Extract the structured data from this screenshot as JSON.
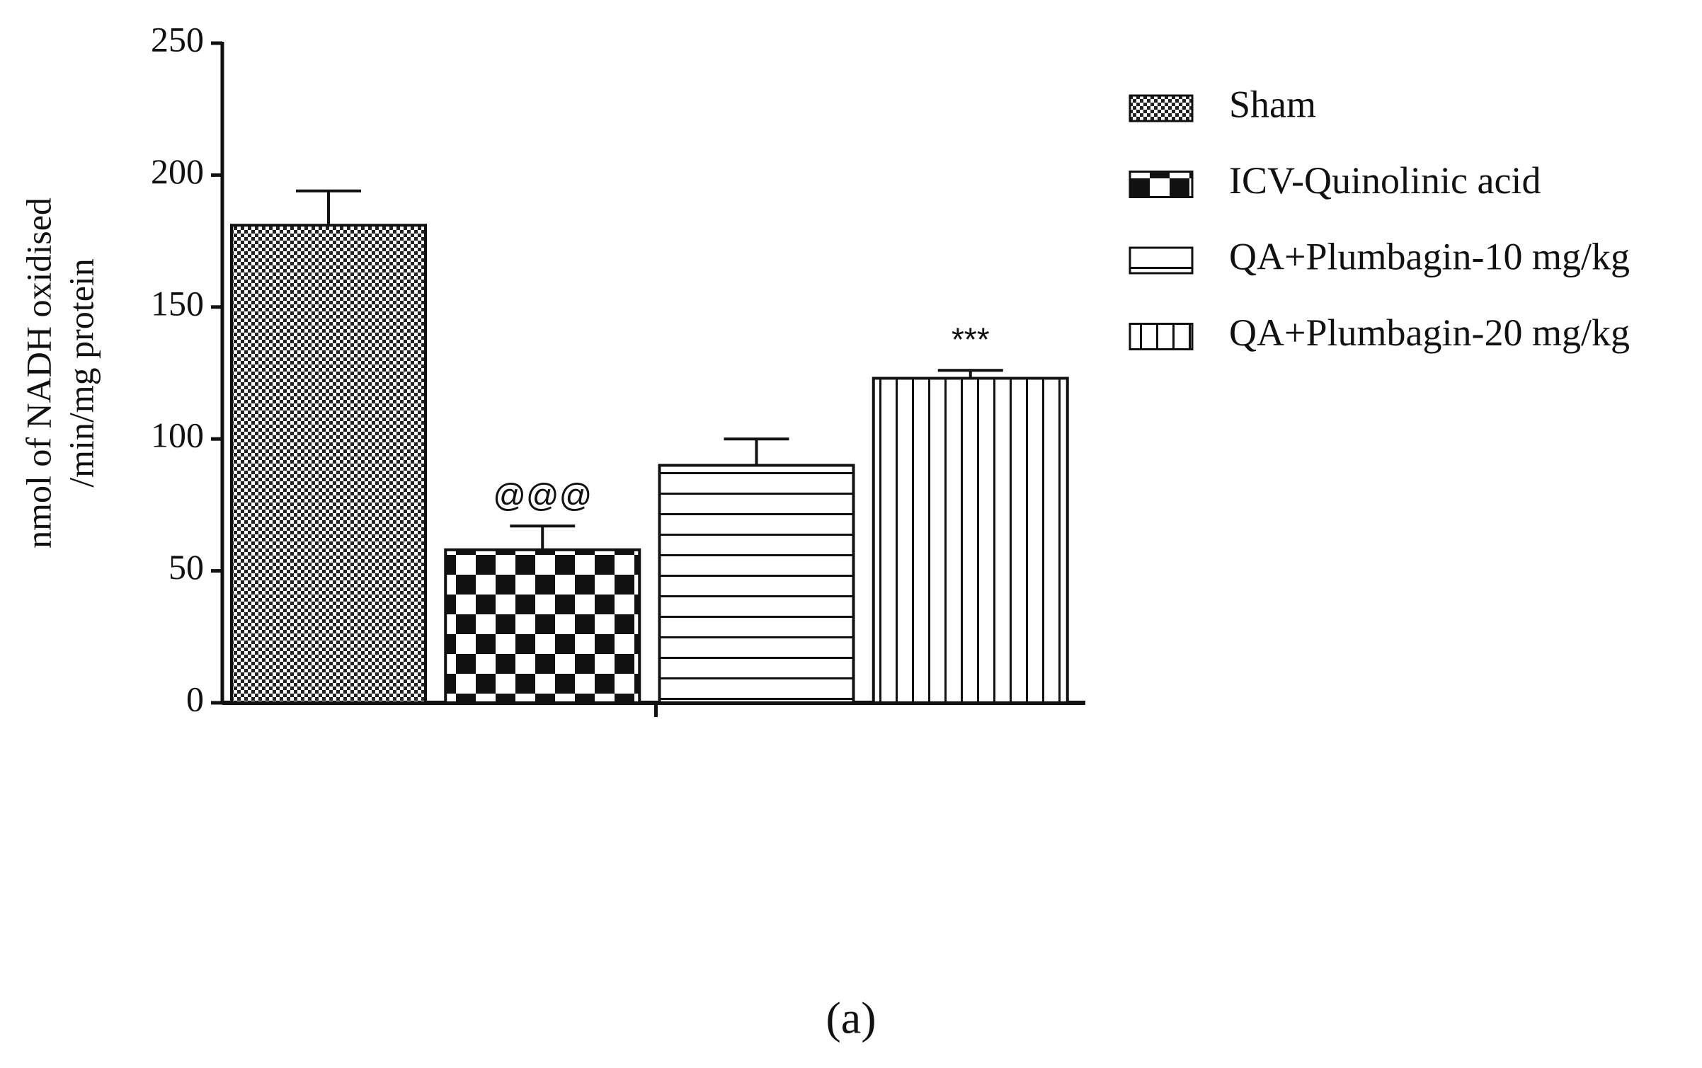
{
  "chart_data": {
    "type": "bar",
    "ylabel": [
      "nmol of NADH oxidised",
      "/min/mg protein"
    ],
    "ylim": [
      0,
      250
    ],
    "yticks": [
      0,
      50,
      100,
      150,
      200,
      250
    ],
    "series": [
      {
        "name": "Sham",
        "pattern": "dots",
        "values": [
          181
        ],
        "errors": [
          13
        ]
      },
      {
        "name": "ICV-Quinolinic acid",
        "pattern": "checker",
        "values": [
          58
        ],
        "errors": [
          9
        ],
        "annotation": "@@@"
      },
      {
        "name": "QA+Plumbagin-10 mg/kg",
        "pattern": "hlines",
        "values": [
          90
        ],
        "errors": [
          10
        ]
      },
      {
        "name": "QA+Plumbagin-20 mg/kg",
        "pattern": "vlines",
        "values": [
          123
        ],
        "errors": [
          3
        ],
        "annotation": "***"
      }
    ],
    "caption": "(a)"
  }
}
